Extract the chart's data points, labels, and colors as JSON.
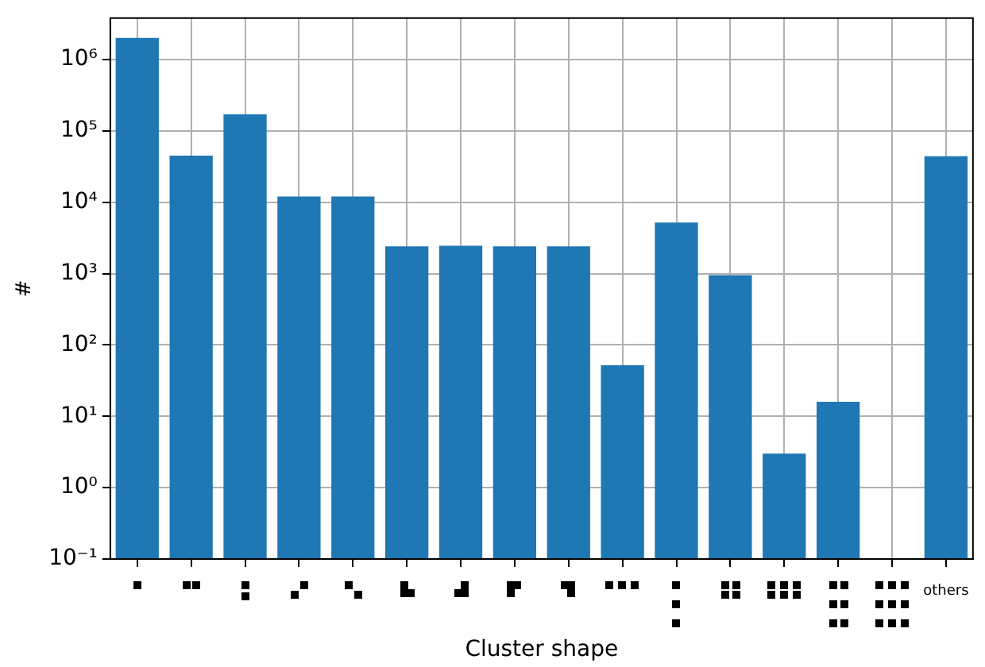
{
  "chart_data": {
    "type": "bar",
    "xlabel": "Cluster shape",
    "ylabel": "#",
    "categories": [
      null,
      null,
      null,
      null,
      null,
      null,
      null,
      null,
      null,
      null,
      null,
      null,
      null,
      null,
      null,
      "others"
    ],
    "values": [
      2000000,
      45000,
      170000,
      12000,
      12000,
      2400,
      2450,
      2400,
      2400,
      52,
      5200,
      950,
      3,
      16,
      null,
      44000
    ],
    "color": "#1f77b4",
    "log": "y",
    "ylim": [
      0.1,
      3800000
    ],
    "yticks": [
      {
        "value": 0.1,
        "label": "10⁻¹"
      },
      {
        "value": 1,
        "label": "10⁰"
      },
      {
        "value": 10,
        "label": "10¹"
      },
      {
        "value": 100,
        "label": "10²"
      },
      {
        "value": 1000,
        "label": "10³"
      },
      {
        "value": 10000,
        "label": "10⁴"
      },
      {
        "value": 100000,
        "label": "10⁵"
      },
      {
        "value": 1000000,
        "label": "10⁶"
      }
    ],
    "grid": true
  }
}
